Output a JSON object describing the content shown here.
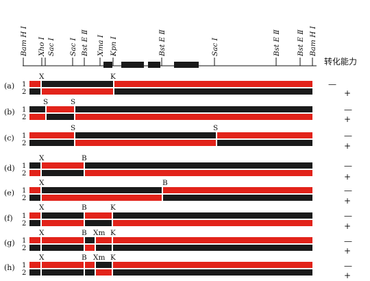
{
  "colors": {
    "red": "#e2231a",
    "black": "#1a1a1a",
    "white": "#ffffff"
  },
  "header": {
    "transform_ability_label": "转化能力",
    "sites": [
      {
        "id": "bamh1_left",
        "label": "Bam H Ⅰ"
      },
      {
        "id": "xho1",
        "label": "Xho Ⅰ"
      },
      {
        "id": "sac1_left",
        "label": "Sac Ⅰ"
      },
      {
        "id": "sac1_mid",
        "label": "Sac Ⅰ"
      },
      {
        "id": "bste2_left",
        "label": "Bst E Ⅱ"
      },
      {
        "id": "xma1",
        "label": "Xma Ⅰ"
      },
      {
        "id": "kpn1",
        "label": "Kpn Ⅰ"
      },
      {
        "id": "bste2_mid",
        "label": "Bst E Ⅱ"
      },
      {
        "id": "sac1_right",
        "label": "Sac Ⅰ"
      },
      {
        "id": "bste2_r1",
        "label": "Bst E Ⅱ"
      },
      {
        "id": "bste2_r2",
        "label": "Bst E Ⅱ"
      },
      {
        "id": "bamh1_right",
        "label": "Bam H Ⅰ"
      }
    ]
  },
  "rows": [
    {
      "id": "a",
      "label": "(a)",
      "marks": [
        "X",
        "K"
      ],
      "track1": "1",
      "track2": "2",
      "sign1": "—",
      "sign2": "+"
    },
    {
      "id": "b",
      "label": "(b)",
      "marks": [
        "S",
        "S"
      ],
      "track1": "1",
      "track2": "2",
      "sign1": "—",
      "sign2": "+"
    },
    {
      "id": "c",
      "label": "(c)",
      "marks": [
        "S",
        "S"
      ],
      "track1": "1",
      "track2": "2",
      "sign1": "—",
      "sign2": "+"
    },
    {
      "id": "d",
      "label": "(d)",
      "marks": [
        "X",
        "B"
      ],
      "track1": "1",
      "track2": "2",
      "sign1": "—",
      "sign2": "+"
    },
    {
      "id": "e",
      "label": "(e)",
      "marks": [
        "X",
        "B"
      ],
      "track1": "1",
      "track2": "2",
      "sign1": "—",
      "sign2": "+"
    },
    {
      "id": "f",
      "label": "(f)",
      "marks": [
        "X",
        "B",
        "K"
      ],
      "track1": "1",
      "track2": "2",
      "sign1": "—",
      "sign2": "+"
    },
    {
      "id": "g",
      "label": "(g)",
      "marks": [
        "X",
        "B",
        "Xm",
        "K"
      ],
      "track1": "1",
      "track2": "2",
      "sign1": "—",
      "sign2": "+"
    },
    {
      "id": "h",
      "label": "(h)",
      "marks": [
        "X",
        "B",
        "Xm",
        "K"
      ],
      "track1": "1",
      "track2": "2",
      "sign1": "—",
      "sign2": "+"
    }
  ]
}
